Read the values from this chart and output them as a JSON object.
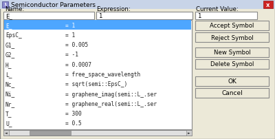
{
  "title": "Semiconductor Parameters",
  "title_icon": "1",
  "close_btn_color": "#cc2222",
  "dialog_bg": "#d4d0c8",
  "inner_bg": "#ece9d8",
  "label_name": "Name:",
  "label_expr": "Expression:",
  "label_curval": "Current Value:",
  "input_name": "E_",
  "input_expr": "1",
  "input_curval": "1",
  "list_items": [
    [
      "E_",
      "= 1"
    ],
    [
      "EpsC_",
      "= 1"
    ],
    [
      "G1_",
      "= 0.005"
    ],
    [
      "G2_",
      "= -1"
    ],
    [
      "H_",
      "= 0.0007"
    ],
    [
      "L_",
      "= free_space_wavelength"
    ],
    [
      "Nc_",
      "= sqrt(semi::EpsC_)"
    ],
    [
      "Ni_",
      "= graphene_imag(semi::L_.ser"
    ],
    [
      "Nr_",
      "= graphene_real(semi::L_.ser"
    ],
    [
      "T_",
      "= 300"
    ],
    [
      "U_",
      "= 0.5"
    ]
  ],
  "selected_row": 0,
  "selected_bg": "#4da6ff",
  "selected_fg": "#ffffff",
  "list_bg": "#ffffff",
  "list_fg": "#222222",
  "buttons": [
    "Accept Symbol",
    "Reject Symbol",
    "New Symbol",
    "Delete Symbol",
    "OK",
    "Cancel"
  ],
  "btn_bg": "#ece9d8",
  "btn_border": "#888888",
  "scrollbar_bg": "#c0c0c0",
  "scrollbar_thumb": "#a0a0a0",
  "border_outer": "#888888",
  "border_inner": "#ffffff",
  "titlebar_bg": "#c8d4e8",
  "titlebar_text_color": "#000000",
  "font_size": 6.2,
  "title_font_size": 6.5
}
